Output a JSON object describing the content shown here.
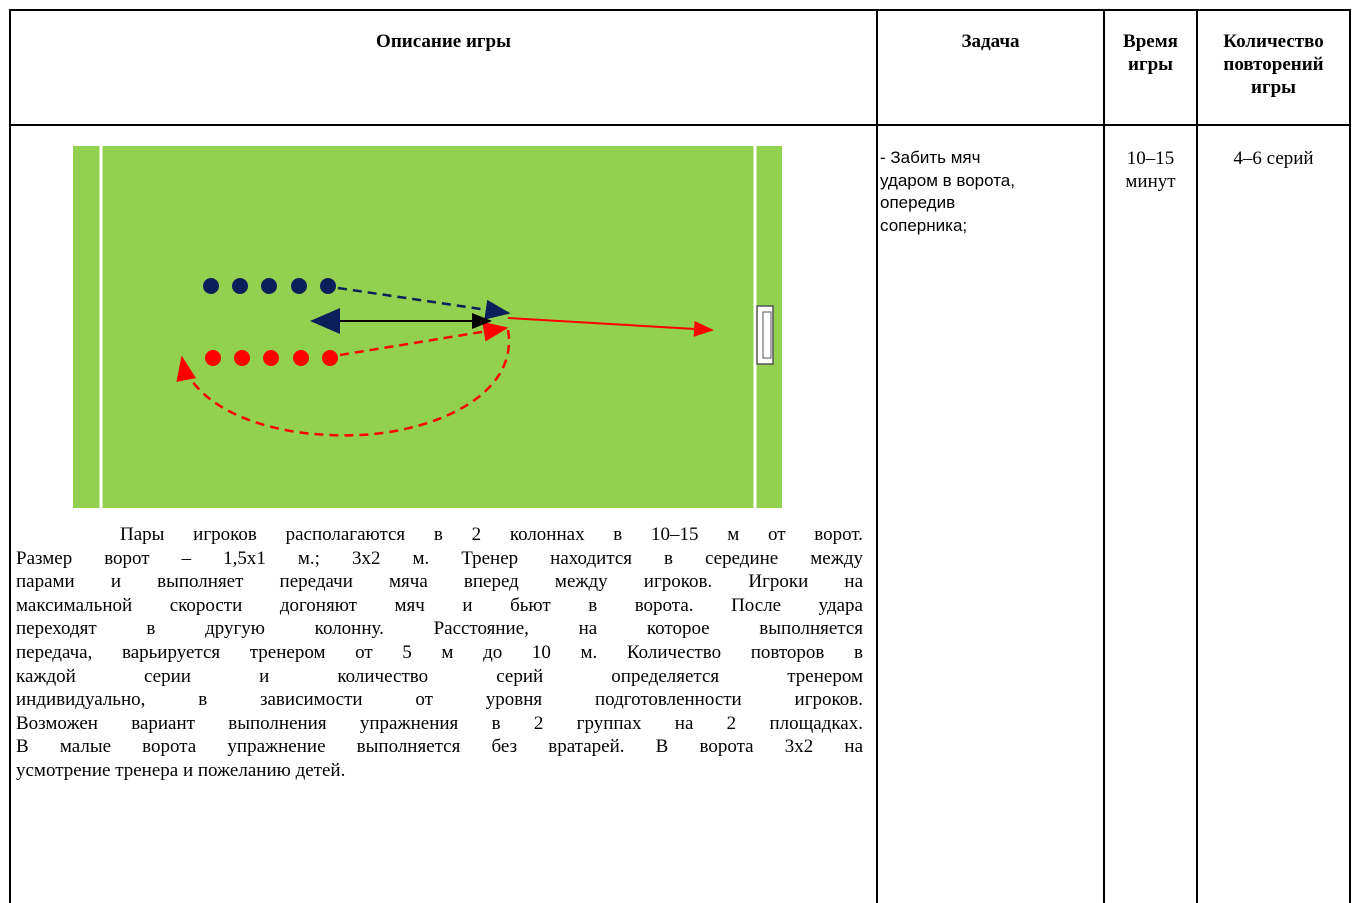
{
  "table": {
    "header": {
      "description": "Описание игры",
      "task": "Задача",
      "time": [
        "Время",
        "игры"
      ],
      "reps": [
        "Количество",
        "повторений",
        "игры"
      ]
    },
    "row": {
      "paragraph": [
        "Пары игроков располагаются в 2 колоннах в 10–15 м от ворот.",
        "Размер ворот – 1,5х1 м.; 3х2 м. Тренер находится в середине между",
        "парами и выполняет передачи мяча вперед между игроков. Игроки на",
        "максимальной скорости догоняют мяч и бьют в ворота. После удара",
        "переходят в другую колонну. Расстояние, на которое выполняется",
        "передача, варьируется тренером от 5 м до 10 м. Количество повторов в",
        "каждой серии и количество серий определяется тренером",
        "индивидуально, в зависимости от уровня подготовленности игроков.",
        "Возможен вариант выполнения упражнения в 2 группах на 2 площадках.",
        "В малые ворота упражнение выполняется без вратарей. В ворота 3х2 на",
        "усмотрение тренера и пожеланию детей."
      ],
      "task": [
        "- Забить мяч",
        "ударом в ворота,",
        "опередив",
        "соперника;"
      ],
      "time": [
        "10–15",
        "минут"
      ],
      "reps": "4–6 серий"
    }
  }
}
